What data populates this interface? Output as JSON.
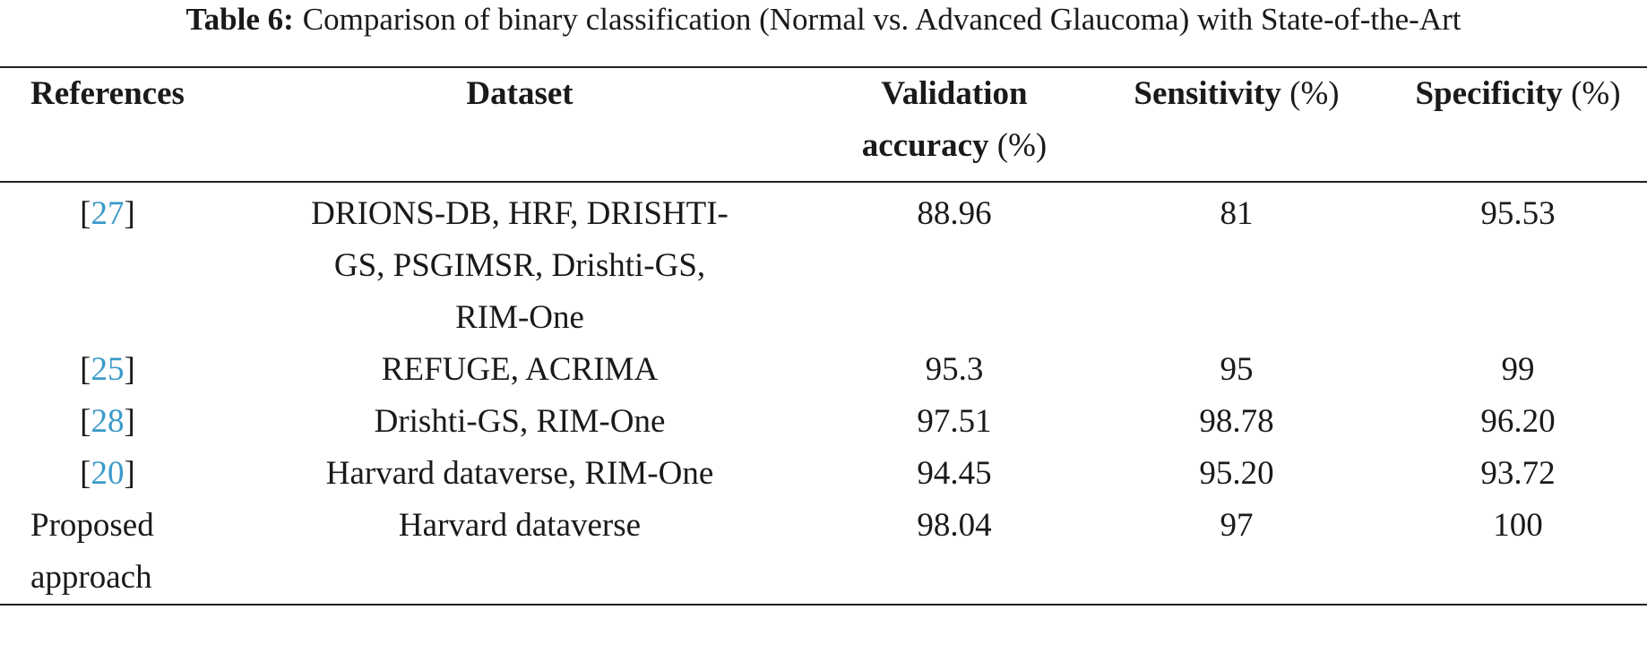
{
  "caption": {
    "label": "Table 6:",
    "text": "Comparison of binary classification (Normal vs. Advanced Glaucoma) with State-of-the-Art"
  },
  "table": {
    "header": [
      [
        "References"
      ],
      [
        "Dataset"
      ],
      [
        "Validation accuracy",
        "(%)"
      ],
      [
        "Sensitivity",
        "(%)"
      ],
      [
        "Specificity",
        "(%)"
      ]
    ],
    "rows": [
      [
        [
          "[",
          "27",
          "]"
        ],
        "DRIONS-DB, HRF, DRISHTI-GS, PSGIMSR, Drishti-GS, RIM-One",
        "88.96",
        "81",
        "95.53"
      ],
      [
        [
          "[",
          "25",
          "]"
        ],
        "REFUGE, ACRIMA",
        "95.3",
        "95",
        "99"
      ],
      [
        [
          "[",
          "28",
          "]"
        ],
        "Drishti-GS, RIM-One",
        "97.51",
        "98.78",
        "96.20"
      ],
      [
        [
          "[",
          "20",
          "]"
        ],
        "Harvard dataverse, RIM-One",
        "94.45",
        "95.20",
        "93.72"
      ],
      [
        "Proposed approach",
        "Harvard dataverse",
        "98.04",
        "97",
        "100"
      ]
    ]
  }
}
